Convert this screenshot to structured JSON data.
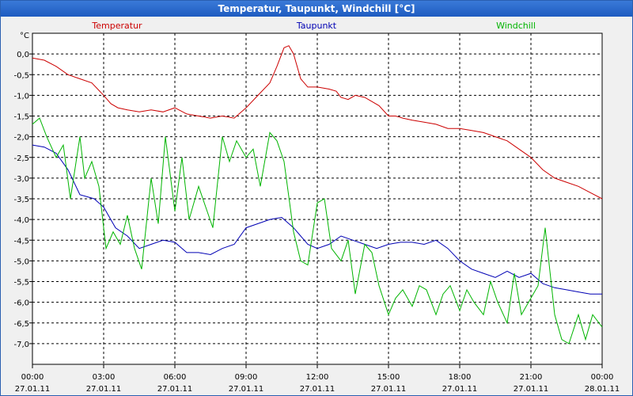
{
  "window": {
    "title": "Temperatur, Taupunkt, Windchill [°C]"
  },
  "chart_data": {
    "type": "line",
    "title": "Temperatur, Taupunkt, Windchill [°C]",
    "ylabel": "°C",
    "xlabel": "",
    "ylim": [
      -7.5,
      0.5
    ],
    "xlim": [
      0,
      24
    ],
    "grid": true,
    "y_ticks": [
      "0,0",
      "-0,5",
      "-1,0",
      "-1,5",
      "-2,0",
      "-2,5",
      "-3,0",
      "-3,5",
      "-4,0",
      "-4,5",
      "-5,0",
      "-5,5",
      "-6,0",
      "-6,5",
      "-7,0"
    ],
    "y_tick_values": [
      0,
      -0.5,
      -1,
      -1.5,
      -2,
      -2.5,
      -3,
      -3.5,
      -4,
      -4.5,
      -5,
      -5.5,
      -6,
      -6.5,
      -7
    ],
    "x_ticks": [
      {
        "time": "00:00",
        "date": "27.01.11"
      },
      {
        "time": "03:00",
        "date": "27.01.11"
      },
      {
        "time": "06:00",
        "date": "27.01.11"
      },
      {
        "time": "09:00",
        "date": "27.01.11"
      },
      {
        "time": "12:00",
        "date": "27.01.11"
      },
      {
        "time": "15:00",
        "date": "27.01.11"
      },
      {
        "time": "18:00",
        "date": "27.01.11"
      },
      {
        "time": "21:00",
        "date": "27.01.11"
      },
      {
        "time": "00:00",
        "date": "28.01.11"
      }
    ],
    "x_tick_values": [
      0,
      3,
      6,
      9,
      12,
      15,
      18,
      21,
      24
    ],
    "series": [
      {
        "name": "Temperatur",
        "color": "#cc0000",
        "x": [
          0,
          0.5,
          1,
          1.5,
          2,
          2.5,
          3,
          3.3,
          3.6,
          4,
          4.5,
          5,
          5.5,
          6,
          6.5,
          7,
          7.5,
          8,
          8.5,
          9,
          9.5,
          10,
          10.3,
          10.6,
          10.8,
          11,
          11.3,
          11.6,
          12,
          12.5,
          12.8,
          13,
          13.3,
          13.6,
          14,
          14.3,
          14.6,
          15,
          15.3,
          15.6,
          16,
          16.5,
          17,
          17.5,
          18,
          18.5,
          19,
          19.5,
          20,
          20.5,
          21,
          21.5,
          22,
          22.5,
          23,
          23.5,
          24
        ],
        "values": [
          -0.1,
          -0.15,
          -0.3,
          -0.5,
          -0.6,
          -0.7,
          -1.0,
          -1.2,
          -1.3,
          -1.35,
          -1.4,
          -1.35,
          -1.4,
          -1.3,
          -1.45,
          -1.5,
          -1.55,
          -1.5,
          -1.55,
          -1.3,
          -1.0,
          -0.7,
          -0.3,
          0.15,
          0.2,
          0.0,
          -0.6,
          -0.8,
          -0.8,
          -0.85,
          -0.9,
          -1.05,
          -1.1,
          -1.0,
          -1.05,
          -1.15,
          -1.25,
          -1.5,
          -1.5,
          -1.55,
          -1.6,
          -1.65,
          -1.7,
          -1.8,
          -1.8,
          -1.85,
          -1.9,
          -2.0,
          -2.1,
          -2.3,
          -2.5,
          -2.8,
          -3.0,
          -3.1,
          -3.2,
          -3.35,
          -3.5
        ]
      },
      {
        "name": "Taupunkt",
        "color": "#0000b4",
        "x": [
          0,
          0.5,
          1,
          1.5,
          2,
          2.3,
          2.6,
          3,
          3.5,
          4,
          4.5,
          5,
          5.5,
          6,
          6.5,
          7,
          7.5,
          8,
          8.5,
          9,
          9.5,
          10,
          10.5,
          11,
          11.3,
          11.6,
          12,
          12.5,
          13,
          13.5,
          14,
          14.5,
          15,
          15.5,
          16,
          16.5,
          17,
          17.5,
          18,
          18.5,
          19,
          19.5,
          20,
          20.5,
          21,
          21.5,
          22,
          22.5,
          23,
          23.5,
          24
        ],
        "values": [
          -2.2,
          -2.25,
          -2.4,
          -2.8,
          -3.4,
          -3.45,
          -3.5,
          -3.7,
          -4.2,
          -4.4,
          -4.7,
          -4.6,
          -4.5,
          -4.55,
          -4.8,
          -4.8,
          -4.85,
          -4.7,
          -4.6,
          -4.2,
          -4.1,
          -4.0,
          -3.95,
          -4.2,
          -4.4,
          -4.6,
          -4.7,
          -4.6,
          -4.4,
          -4.5,
          -4.6,
          -4.7,
          -4.6,
          -4.55,
          -4.55,
          -4.6,
          -4.5,
          -4.7,
          -5.0,
          -5.2,
          -5.3,
          -5.4,
          -5.25,
          -5.4,
          -5.3,
          -5.55,
          -5.65,
          -5.7,
          -5.75,
          -5.8,
          -5.8
        ]
      },
      {
        "name": "Windchill",
        "color": "#00b400",
        "x": [
          0,
          0.3,
          0.6,
          1,
          1.3,
          1.6,
          2,
          2.2,
          2.5,
          2.8,
          3.1,
          3.4,
          3.7,
          4,
          4.3,
          4.6,
          5,
          5.3,
          5.6,
          6,
          6.3,
          6.6,
          7,
          7.3,
          7.6,
          8,
          8.3,
          8.6,
          9,
          9.3,
          9.6,
          10,
          10.3,
          10.6,
          11,
          11.3,
          11.6,
          12,
          12.3,
          12.6,
          13,
          13.3,
          13.6,
          14,
          14.3,
          14.6,
          15,
          15.3,
          15.6,
          16,
          16.3,
          16.6,
          17,
          17.3,
          17.6,
          18,
          18.3,
          18.6,
          19,
          19.3,
          19.6,
          20,
          20.3,
          20.6,
          21,
          21.3,
          21.6,
          22,
          22.3,
          22.6,
          23,
          23.3,
          23.6,
          24
        ],
        "values": [
          -1.7,
          -1.55,
          -2.0,
          -2.5,
          -2.2,
          -3.5,
          -2.0,
          -3.0,
          -2.6,
          -3.2,
          -4.7,
          -4.3,
          -4.6,
          -3.9,
          -4.7,
          -5.2,
          -3.0,
          -4.1,
          -2.0,
          -3.8,
          -2.5,
          -4.0,
          -3.2,
          -3.7,
          -4.2,
          -2.0,
          -2.6,
          -2.1,
          -2.5,
          -2.3,
          -3.2,
          -1.9,
          -2.1,
          -2.6,
          -4.3,
          -5.0,
          -5.1,
          -3.6,
          -3.5,
          -4.7,
          -5.0,
          -4.5,
          -5.8,
          -4.6,
          -4.8,
          -5.6,
          -6.3,
          -5.9,
          -5.7,
          -6.1,
          -5.6,
          -5.7,
          -6.3,
          -5.8,
          -5.6,
          -6.2,
          -5.7,
          -6.0,
          -6.3,
          -5.5,
          -6.0,
          -6.5,
          -5.3,
          -6.3,
          -5.9,
          -5.6,
          -4.2,
          -6.3,
          -6.9,
          -7.0,
          -6.3,
          -6.9,
          -6.3,
          -6.6
        ]
      }
    ]
  }
}
